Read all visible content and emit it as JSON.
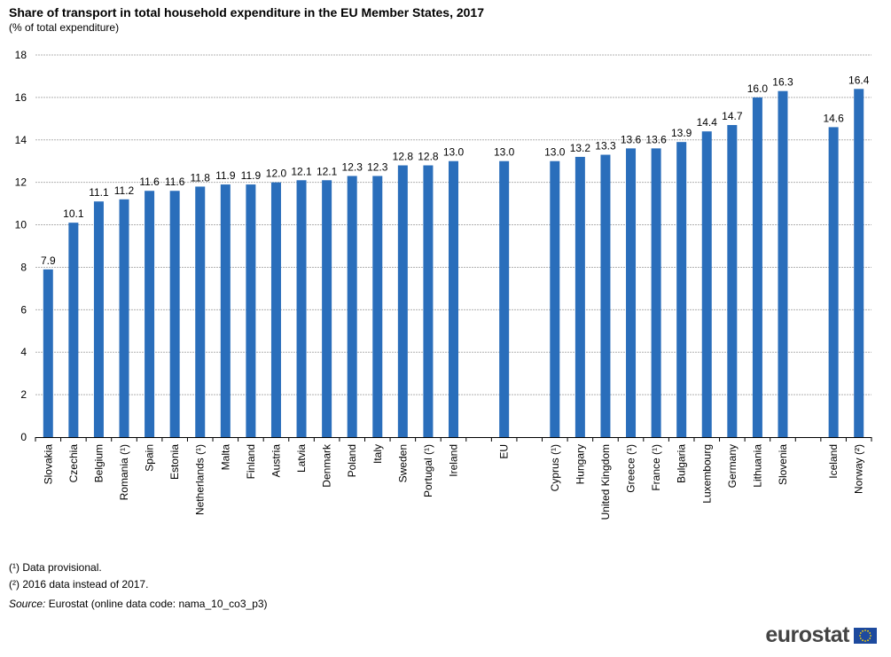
{
  "chart_data": {
    "type": "bar",
    "title": "Share of transport in total household expenditure in the EU Member States, 2017",
    "subtitle": "(% of total expenditure)",
    "categories": [
      "Slovakia",
      "Czechia",
      "Belgium",
      "Romania (¹)",
      "Spain",
      "Estonia",
      "Netherlands (¹)",
      "Malta",
      "Finland",
      "Austria",
      "Latvia",
      "Denmark",
      "Poland",
      "Italy",
      "Sweden",
      "Portugal (¹)",
      "Ireland",
      "",
      "EU",
      "",
      "Cyprus (¹)",
      "Hungary",
      "United Kingdom",
      "Greece (¹)",
      "France (¹)",
      "Bulgaria",
      "Luxembourg",
      "Germany",
      "Lithuania",
      "Slovenia",
      "",
      "Iceland",
      "Norway (²)"
    ],
    "values": [
      7.9,
      10.1,
      11.1,
      11.2,
      11.6,
      11.6,
      11.8,
      11.9,
      11.9,
      12.0,
      12.1,
      12.1,
      12.3,
      12.3,
      12.8,
      12.8,
      13.0,
      null,
      13.0,
      null,
      13.0,
      13.2,
      13.3,
      13.6,
      13.6,
      13.9,
      14.4,
      14.7,
      16.0,
      16.3,
      null,
      14.6,
      16.4
    ],
    "ylim": [
      0,
      18
    ],
    "yticks": [
      0,
      2,
      4,
      6,
      8,
      10,
      12,
      14,
      16,
      18
    ],
    "grid": true,
    "bar_color": "#2a6ebb",
    "data_labels": true
  },
  "footnotes": {
    "note1": "(¹) Data provisional.",
    "note2": "(²) 2016 data instead of 2017.",
    "source_label": "Source:",
    "source_text": " Eurostat (online data code: nama_10_co3_p3)"
  },
  "logo": {
    "text": "eurostat"
  }
}
